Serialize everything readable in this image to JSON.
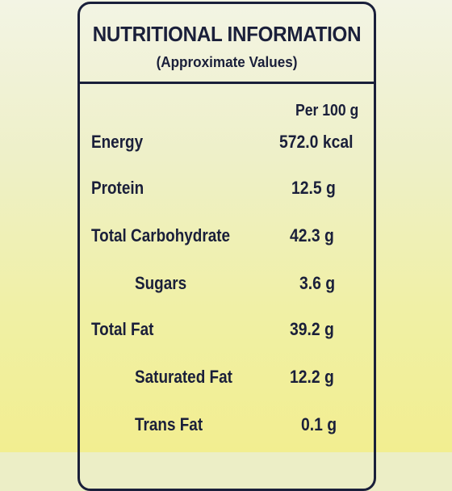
{
  "panel": {
    "title": "NUTRITIONAL INFORMATION",
    "subtitle": "(Approximate Values)",
    "per_label": "Per 100 g",
    "rows": [
      {
        "label": "Energy",
        "value": "572.0 kcal"
      },
      {
        "label": "Protein",
        "value": "12.5 g"
      },
      {
        "label": "Total Carbohydrate",
        "value": "42.3 g"
      },
      {
        "label": "Sugars",
        "value": "3.6 g"
      },
      {
        "label": "Total Fat",
        "value": "39.2 g"
      },
      {
        "label": "Saturated Fat",
        "value": "12.2 g"
      },
      {
        "label": "Trans Fat",
        "value": "0.1 g"
      }
    ]
  }
}
